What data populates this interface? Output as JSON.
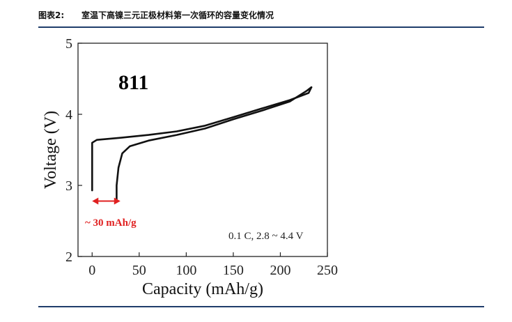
{
  "figure": {
    "number": "图表2:",
    "caption": "室温下高镍三元正极材料第一次循环的容量变化情况"
  },
  "chart_data": {
    "type": "line",
    "xlabel": "Capacity (mAh/g)",
    "ylabel": "Voltage (V)",
    "xlim": [
      -15,
      250
    ],
    "ylim": [
      2,
      5
    ],
    "xticks": [
      0,
      50,
      100,
      150,
      200,
      250
    ],
    "yticks": [
      2,
      3,
      4,
      5
    ],
    "grid": false,
    "legend": "none",
    "series": [
      {
        "x": [
          0,
          0,
          5,
          30,
          60,
          90,
          120,
          150,
          180,
          210,
          230,
          233
        ],
        "y": [
          2.93,
          3.6,
          3.64,
          3.67,
          3.71,
          3.76,
          3.84,
          3.96,
          4.08,
          4.2,
          4.3,
          4.38
        ]
      },
      {
        "x": [
          233,
          228,
          210,
          180,
          150,
          120,
          90,
          60,
          40,
          32,
          28,
          26,
          26
        ],
        "y": [
          4.38,
          4.33,
          4.18,
          4.05,
          3.93,
          3.8,
          3.71,
          3.63,
          3.55,
          3.45,
          3.25,
          3.0,
          2.8
        ]
      }
    ],
    "annotations": {
      "model": "811",
      "conditions": "0.1 C, 2.8 ~ 4.4 V",
      "capacity_loss": "~ 30 mAh/g",
      "capacity_loss_range": [
        0,
        30
      ],
      "capacity_loss_voltage": 2.78
    },
    "colors": {
      "curve": "#111111",
      "loss": "#e02020",
      "rule": "#1f3d6b"
    }
  }
}
